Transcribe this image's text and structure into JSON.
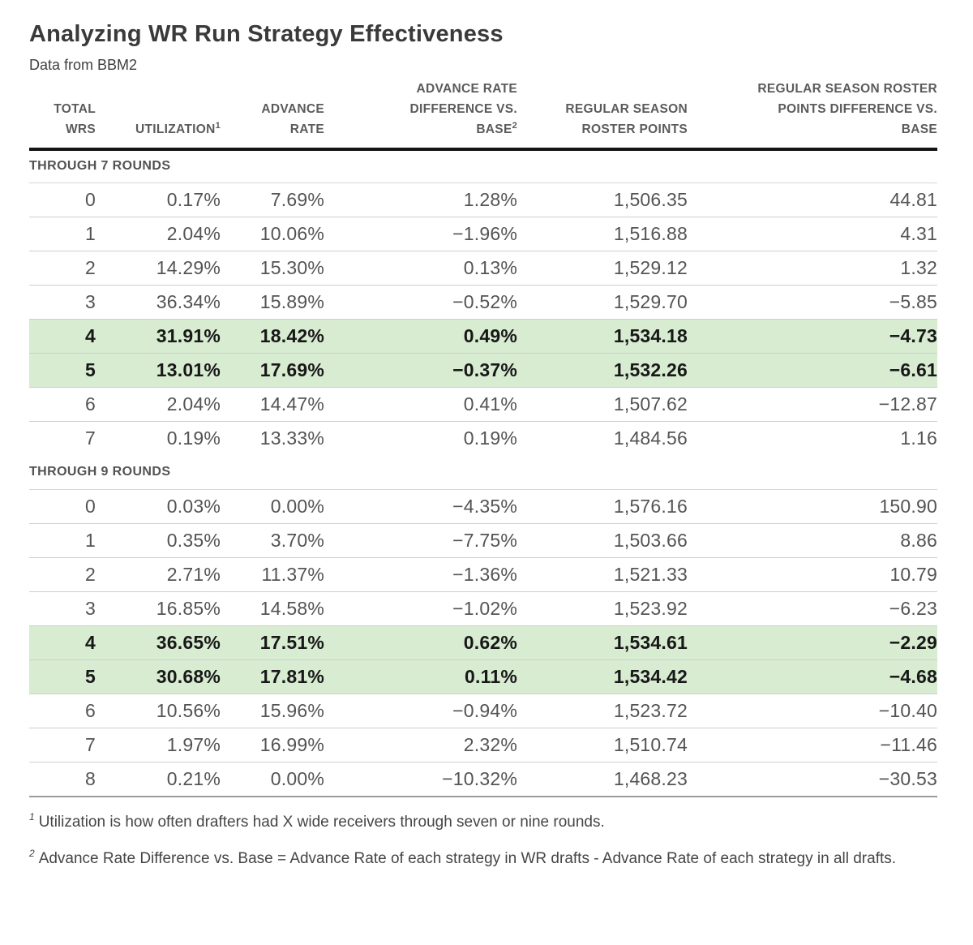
{
  "header": {
    "title": "Analyzing WR Run Strategy Effectiveness",
    "subtitle": "Data from BBM2"
  },
  "colors": {
    "highlight_row_bg": "#d8ecd2",
    "header_rule": "#141414",
    "row_rule": "#cfcfcf",
    "table_bottom_rule": "#9b9b9b",
    "title_text": "#3a3a3a",
    "body_text": "#545454",
    "highlight_text": "#181818"
  },
  "chart_data": {
    "type": "table",
    "title": "Analyzing WR Run Strategy Effectiveness",
    "subtitle": "Data from BBM2",
    "legend_position": "none",
    "grid": "horizontal-rules",
    "columns": [
      {
        "label": "TOTAL\nWRS",
        "sup": ""
      },
      {
        "label": "UTILIZATION",
        "sup": "1"
      },
      {
        "label": "ADVANCE\nRATE",
        "sup": ""
      },
      {
        "label": "ADVANCE RATE\nDIFFERENCE VS.\nBASE",
        "sup": "2"
      },
      {
        "label": "REGULAR SEASON\nROSTER POINTS",
        "sup": ""
      },
      {
        "label": "REGULAR SEASON ROSTER\nPOINTS DIFFERENCE VS.\nBASE",
        "sup": ""
      }
    ],
    "sections": [
      {
        "label": "THROUGH 7 ROUNDS",
        "rows": [
          {
            "highlighted": false,
            "values": [
              "0",
              "0.17%",
              "7.69%",
              "1.28%",
              "1,506.35",
              "44.81"
            ]
          },
          {
            "highlighted": false,
            "values": [
              "1",
              "2.04%",
              "10.06%",
              "−1.96%",
              "1,516.88",
              "4.31"
            ]
          },
          {
            "highlighted": false,
            "values": [
              "2",
              "14.29%",
              "15.30%",
              "0.13%",
              "1,529.12",
              "1.32"
            ]
          },
          {
            "highlighted": false,
            "values": [
              "3",
              "36.34%",
              "15.89%",
              "−0.52%",
              "1,529.70",
              "−5.85"
            ]
          },
          {
            "highlighted": true,
            "values": [
              "4",
              "31.91%",
              "18.42%",
              "0.49%",
              "1,534.18",
              "−4.73"
            ]
          },
          {
            "highlighted": true,
            "values": [
              "5",
              "13.01%",
              "17.69%",
              "−0.37%",
              "1,532.26",
              "−6.61"
            ]
          },
          {
            "highlighted": false,
            "values": [
              "6",
              "2.04%",
              "14.47%",
              "0.41%",
              "1,507.62",
              "−12.87"
            ]
          },
          {
            "highlighted": false,
            "values": [
              "7",
              "0.19%",
              "13.33%",
              "0.19%",
              "1,484.56",
              "1.16"
            ]
          }
        ]
      },
      {
        "label": "THROUGH 9 ROUNDS",
        "rows": [
          {
            "highlighted": false,
            "values": [
              "0",
              "0.03%",
              "0.00%",
              "−4.35%",
              "1,576.16",
              "150.90"
            ]
          },
          {
            "highlighted": false,
            "values": [
              "1",
              "0.35%",
              "3.70%",
              "−7.75%",
              "1,503.66",
              "8.86"
            ]
          },
          {
            "highlighted": false,
            "values": [
              "2",
              "2.71%",
              "11.37%",
              "−1.36%",
              "1,521.33",
              "10.79"
            ]
          },
          {
            "highlighted": false,
            "values": [
              "3",
              "16.85%",
              "14.58%",
              "−1.02%",
              "1,523.92",
              "−6.23"
            ]
          },
          {
            "highlighted": true,
            "values": [
              "4",
              "36.65%",
              "17.51%",
              "0.62%",
              "1,534.61",
              "−2.29"
            ]
          },
          {
            "highlighted": true,
            "values": [
              "5",
              "30.68%",
              "17.81%",
              "0.11%",
              "1,534.42",
              "−4.68"
            ]
          },
          {
            "highlighted": false,
            "values": [
              "6",
              "10.56%",
              "15.96%",
              "−0.94%",
              "1,523.72",
              "−10.40"
            ]
          },
          {
            "highlighted": false,
            "values": [
              "7",
              "1.97%",
              "16.99%",
              "2.32%",
              "1,510.74",
              "−11.46"
            ]
          },
          {
            "highlighted": false,
            "values": [
              "8",
              "0.21%",
              "0.00%",
              "−10.32%",
              "1,468.23",
              "−30.53"
            ]
          }
        ]
      }
    ],
    "footnotes": [
      {
        "marker": "1",
        "text": "Utilization is how often drafters had X wide receivers through seven or nine rounds."
      },
      {
        "marker": "2",
        "text": "Advance Rate Difference vs. Base = Advance Rate of each strategy in WR drafts - Advance Rate of each strategy in all drafts."
      }
    ]
  }
}
